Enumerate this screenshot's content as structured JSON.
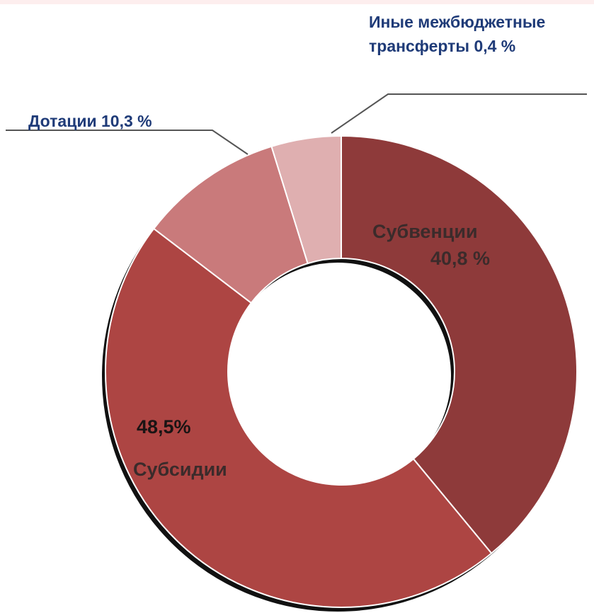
{
  "chart_data": {
    "type": "pie",
    "variant": "donut",
    "slices": [
      {
        "name": "Субвенции",
        "value": 40.8,
        "label_value": "40,8 %",
        "color": "#8e3a3a"
      },
      {
        "name": "Субсидии",
        "value": 48.5,
        "label_value": "48,5%",
        "color": "#ad4543"
      },
      {
        "name": "Дотации",
        "value": 10.3,
        "label_value": "10,3 %",
        "color": "#c97a7b"
      },
      {
        "name": "Иные межбюджетные трансферты",
        "value": 0.4,
        "label_value": "0,4 %",
        "color": "#dfafb0"
      }
    ]
  },
  "labels": {
    "inye_line1": "Иные межбюджетные",
    "inye_line2": "трансферты 0,4 %",
    "dotatsii": "Дотации 10,3 %",
    "subventsii_name": "Субвенции",
    "subventsii_value": "40,8 %",
    "subsidii_value": "48,5%",
    "subsidii_name": "Субсидии"
  },
  "colors": {
    "label_blue": "#1f3b78",
    "slice_text": "#3b2b2b"
  }
}
